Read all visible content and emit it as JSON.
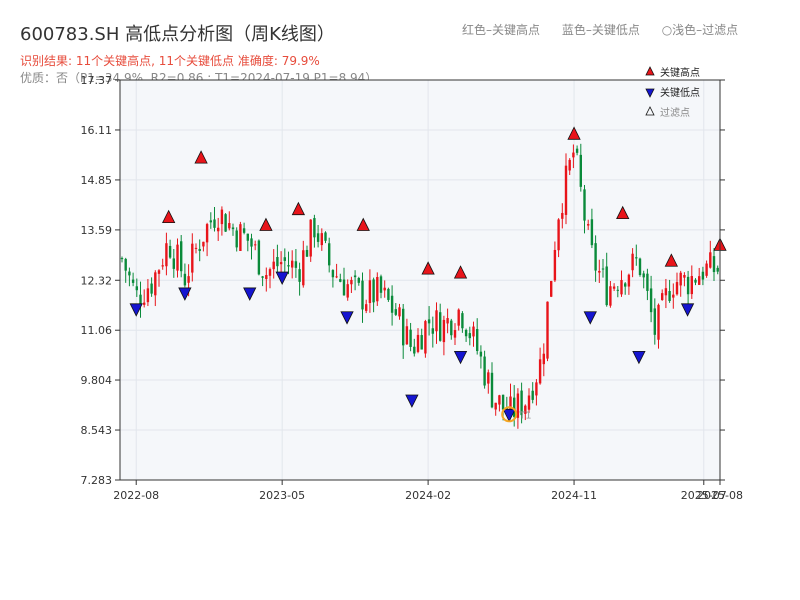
{
  "header": {
    "title": "600783.SH 高低点分析图（周K线图）",
    "result_line": "识别结果: 11个关键高点, 11个关键低点   准确度: 79.9%",
    "quality_line": "优质：否（P1=34.9%, R2=0.86 ; T1=2024-07-19 P1=8.94）",
    "legend_red": "红色–关键高点",
    "legend_blue": "蓝色–关键低点",
    "legend_light": "浅色–过滤点"
  },
  "colors": {
    "up": "#e8141a",
    "down": "#0a8a3a",
    "high_marker": "#e8141a",
    "low_marker": "#1515d0",
    "current_ring": "#f5a623",
    "plot_bg": "#f5f7fa"
  },
  "chart_data": {
    "type": "candlestick",
    "title": "600783.SH 高低点分析图（周K线图）",
    "yticks": [
      "7.283",
      "8.543",
      "9.804",
      "11.06",
      "12.32",
      "13.59",
      "14.85",
      "16.11",
      "17.37"
    ],
    "ylim": [
      7.283,
      17.37
    ],
    "xticks": [
      "2022-08",
      "2023-05",
      "2024-02",
      "2024-11",
      "2025-07",
      "2025-08"
    ],
    "x_range": [
      "2022-07",
      "2025-08"
    ],
    "grid": true,
    "legend": {
      "placement": "top-right",
      "entries": [
        "关键高点",
        "关键低点",
        "过滤点"
      ]
    },
    "close_series": [
      {
        "date": "2022-07",
        "value": 13.0
      },
      {
        "date": "2022-08",
        "value": 11.9
      },
      {
        "date": "2022-09",
        "value": 12.3
      },
      {
        "date": "2022-10",
        "value": 13.3
      },
      {
        "date": "2022-11",
        "value": 12.4
      },
      {
        "date": "2022-12",
        "value": 13.4
      },
      {
        "date": "2023-01",
        "value": 14.1
      },
      {
        "date": "2023-02",
        "value": 13.6
      },
      {
        "date": "2023-03",
        "value": 13.3
      },
      {
        "date": "2023-04",
        "value": 12.5
      },
      {
        "date": "2023-05",
        "value": 12.8
      },
      {
        "date": "2023-06",
        "value": 12.6
      },
      {
        "date": "2023-07",
        "value": 13.7
      },
      {
        "date": "2023-08",
        "value": 12.6
      },
      {
        "date": "2023-09",
        "value": 12.2
      },
      {
        "date": "2023-10",
        "value": 11.9
      },
      {
        "date": "2023-11",
        "value": 12.0
      },
      {
        "date": "2023-12",
        "value": 11.5
      },
      {
        "date": "2024-01",
        "value": 10.6
      },
      {
        "date": "2024-02",
        "value": 11.3
      },
      {
        "date": "2024-03",
        "value": 11.2
      },
      {
        "date": "2024-04",
        "value": 11.6
      },
      {
        "date": "2024-05",
        "value": 10.6
      },
      {
        "date": "2024-06",
        "value": 9.4
      },
      {
        "date": "2024-07",
        "value": 8.94
      },
      {
        "date": "2024-08",
        "value": 9.3
      },
      {
        "date": "2024-09",
        "value": 10.3
      },
      {
        "date": "2024-10",
        "value": 14.0
      },
      {
        "date": "2024-11",
        "value": 15.6
      },
      {
        "date": "2024-12",
        "value": 13.0
      },
      {
        "date": "2025-01",
        "value": 12.1
      },
      {
        "date": "2025-02",
        "value": 12.5
      },
      {
        "date": "2025-03",
        "value": 12.8
      },
      {
        "date": "2025-04",
        "value": 11.0
      },
      {
        "date": "2025-05",
        "value": 12.3
      },
      {
        "date": "2025-06",
        "value": 12.3
      },
      {
        "date": "2025-07",
        "value": 12.6
      },
      {
        "date": "2025-08",
        "value": 12.6
      }
    ],
    "key_highs": [
      {
        "date": "2022-10",
        "value": 13.9
      },
      {
        "date": "2022-12",
        "value": 15.4
      },
      {
        "date": "2023-04",
        "value": 13.7
      },
      {
        "date": "2023-06",
        "value": 14.1
      },
      {
        "date": "2023-10",
        "value": 13.7
      },
      {
        "date": "2024-02",
        "value": 12.6
      },
      {
        "date": "2024-04",
        "value": 12.5
      },
      {
        "date": "2024-11",
        "value": 16.0
      },
      {
        "date": "2025-02",
        "value": 14.0
      },
      {
        "date": "2025-05",
        "value": 12.8
      },
      {
        "date": "2025-08",
        "value": 13.2
      }
    ],
    "key_lows": [
      {
        "date": "2022-08",
        "value": 11.6
      },
      {
        "date": "2022-11",
        "value": 12.0
      },
      {
        "date": "2023-03",
        "value": 12.0
      },
      {
        "date": "2023-05",
        "value": 12.4
      },
      {
        "date": "2023-09",
        "value": 11.4
      },
      {
        "date": "2024-01",
        "value": 9.3
      },
      {
        "date": "2024-04",
        "value": 10.4
      },
      {
        "date": "2024-07",
        "value": 8.94
      },
      {
        "date": "2024-12",
        "value": 11.4
      },
      {
        "date": "2025-03",
        "value": 10.4
      },
      {
        "date": "2025-06",
        "value": 11.6
      }
    ],
    "current_point": {
      "label": "T1",
      "date": "2024-07",
      "value": 8.94
    }
  }
}
